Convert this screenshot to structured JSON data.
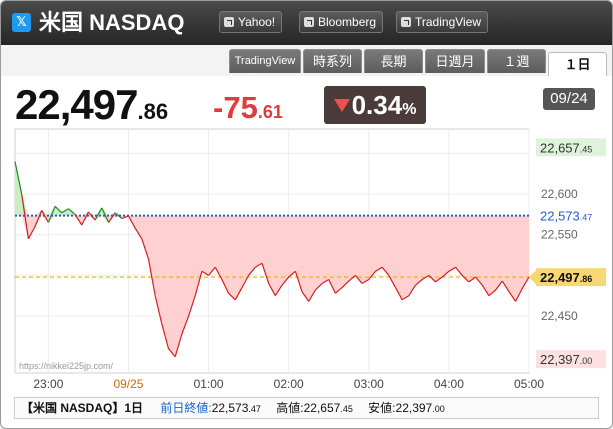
{
  "header": {
    "icon": "x-logo-icon",
    "title": "米国 NASDAQ",
    "links": [
      "Yahoo!",
      "Bloomberg",
      "TradingView"
    ]
  },
  "tabs": [
    "TradingView",
    "時系列",
    "長期",
    "日週月",
    "１週",
    "１日"
  ],
  "active_tab": "１日",
  "quote": {
    "price_int": "22,497",
    "price_dec": ".86",
    "change_int": "-75",
    "change_dec": ".61",
    "pct_main": "0.34",
    "pct_sign": "%",
    "date": "09/24"
  },
  "colors": {
    "down": "#e03c3c",
    "up": "#1e8b1e",
    "prev_close": "#1f5fd0",
    "current": "#f0b800"
  },
  "watermark": "https://nikkei225jp.com/",
  "chart_data": {
    "type": "area",
    "x_ticks": [
      "23:00",
      "09/25",
      "01:00",
      "02:00",
      "03:00",
      "04:00",
      "05:00"
    ],
    "y_ticks": [
      22600,
      22550,
      22450
    ],
    "ylim": [
      22380,
      22680
    ],
    "reference": {
      "prev_close": 22573.47,
      "current": 22497.86,
      "high": 22657.45,
      "low": 22397.0
    },
    "labels": {
      "high": {
        "int": "22,657",
        "dec": ".45"
      },
      "prev_close": {
        "int": "22,573",
        "dec": ".47"
      },
      "current": {
        "int": "22,497",
        "dec": ".86"
      },
      "low": {
        "int": "22,397",
        "dec": ".00"
      }
    },
    "series": [
      {
        "x": [
          "22:35",
          "22:40",
          "22:45",
          "22:50",
          "22:55",
          "23:00",
          "23:05",
          "23:10",
          "23:15",
          "23:20",
          "23:25",
          "23:30",
          "23:35",
          "23:40",
          "23:45",
          "23:50",
          "23:55",
          "00:00",
          "00:05",
          "00:10",
          "00:15",
          "00:20",
          "00:25",
          "00:30",
          "00:35",
          "00:40",
          "00:45",
          "00:50",
          "00:55",
          "01:00",
          "01:05",
          "01:10",
          "01:15",
          "01:20",
          "01:25",
          "01:30",
          "01:35",
          "01:40",
          "01:45",
          "01:50",
          "01:55",
          "02:00",
          "02:05",
          "02:10",
          "02:15",
          "02:20",
          "02:25",
          "02:30",
          "02:35",
          "02:40",
          "02:45",
          "02:50",
          "02:55",
          "03:00",
          "03:05",
          "03:10",
          "03:15",
          "03:20",
          "03:25",
          "03:30",
          "03:35",
          "03:40",
          "03:45",
          "03:50",
          "03:55",
          "04:00",
          "04:05",
          "04:10",
          "04:15",
          "04:20",
          "04:25",
          "04:30",
          "04:35",
          "04:40",
          "04:45",
          "04:50",
          "04:55",
          "05:00"
        ],
        "values": [
          22640,
          22600,
          22545,
          22560,
          22580,
          22565,
          22585,
          22577,
          22582,
          22575,
          22562,
          22578,
          22568,
          22583,
          22565,
          22577,
          22570,
          22573,
          22558,
          22545,
          22520,
          22475,
          22440,
          22410,
          22400,
          22428,
          22450,
          22475,
          22505,
          22500,
          22510,
          22495,
          22478,
          22470,
          22485,
          22500,
          22510,
          22515,
          22490,
          22475,
          22488,
          22498,
          22505,
          22480,
          22468,
          22482,
          22490,
          22495,
          22478,
          22485,
          22493,
          22500,
          22490,
          22495,
          22505,
          22510,
          22500,
          22485,
          22470,
          22475,
          22488,
          22495,
          22500,
          22492,
          22498,
          22505,
          22510,
          22500,
          22492,
          22498,
          22488,
          22475,
          22482,
          22493,
          22480,
          22468,
          22484,
          22498
        ]
      }
    ]
  },
  "footer": {
    "symbol": "【米国 NASDAQ】1日",
    "prev_label": "前日終値:",
    "prev_int": "22,573",
    "prev_dec": ".47",
    "high_label": "高値:",
    "high_int": "22,657",
    "high_dec": ".45",
    "low_label": "安値:",
    "low_int": "22,397",
    "low_dec": ".00"
  }
}
